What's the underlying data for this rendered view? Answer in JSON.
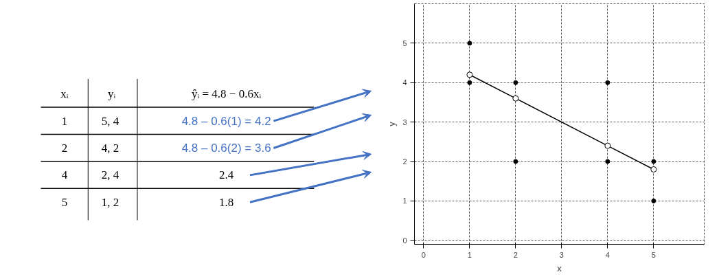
{
  "chart_data": {
    "type": "scatter",
    "xlabel": "x",
    "ylabel": "y",
    "xlim": [
      -0.2,
      6.1
    ],
    "ylim": [
      -0.1,
      6.0
    ],
    "xticks": [
      0,
      1,
      2,
      3,
      4,
      5
    ],
    "yticks": [
      0,
      1,
      2,
      3,
      4,
      5
    ],
    "grid": true,
    "marker": "circle",
    "series": [
      {
        "color": "#000000",
        "x": [
          1,
          1,
          2,
          2,
          4,
          4,
          5,
          5
        ],
        "values": [
          5,
          4,
          4,
          2,
          2,
          4,
          1,
          2
        ]
      },
      {
        "type": "line",
        "color": "#000000",
        "x": [
          1,
          2,
          4,
          5
        ],
        "values": [
          4.2,
          3.6,
          2.4,
          1.8
        ]
      }
    ],
    "annotations": [
      "xᵢ",
      "yᵢ",
      "ŷᵢ = 4.8 − 0.6xᵢ",
      "1",
      "5,  4",
      "4.8 – 0.6(1) = 4.2",
      "2",
      "4,  2",
      "4.8 – 0.6(2) = 3.6",
      "4",
      "2,  4",
      "2.4",
      "5",
      "1,  2",
      "1.8"
    ]
  }
}
